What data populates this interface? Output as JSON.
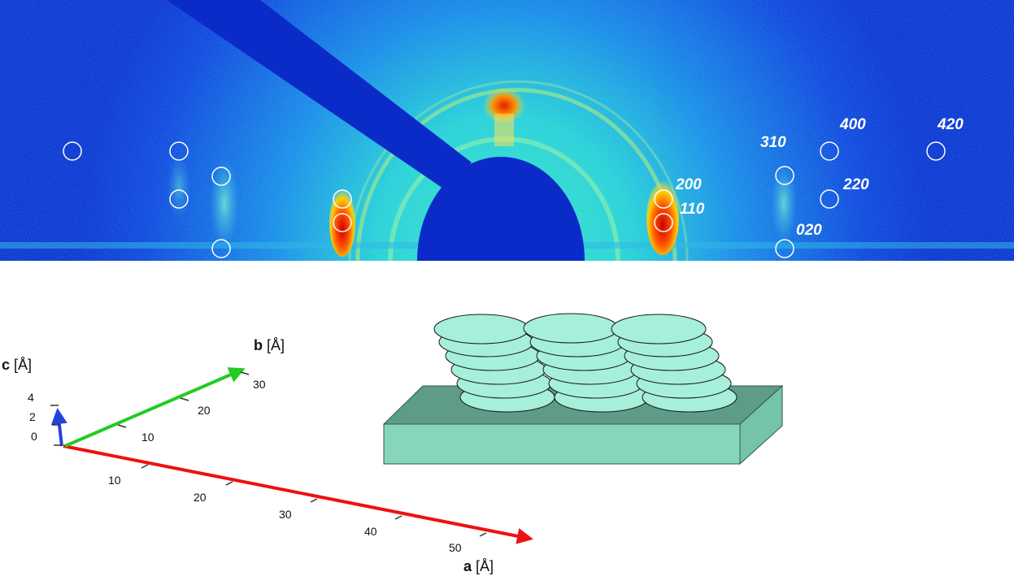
{
  "diffraction_pattern": {
    "reflections": [
      "400",
      "420",
      "310",
      "200",
      "220",
      "110",
      "020"
    ]
  },
  "lattice_axes": {
    "a": {
      "symbol": "a",
      "unit": "[Å]",
      "ticks": [
        "10",
        "20",
        "30",
        "40",
        "50"
      ],
      "color": "#ee1111"
    },
    "b": {
      "symbol": "b",
      "unit": "[Å]",
      "ticks": [
        "10",
        "20",
        "30"
      ],
      "color": "#22cc22"
    },
    "c": {
      "symbol": "c",
      "unit": "[Å]",
      "ticks": [
        "0",
        "2",
        "4"
      ],
      "color": "#2244dd"
    }
  },
  "stack_illustration": {
    "disc_color": "#a6f0db",
    "substrate_top_color": "#5e9c88",
    "substrate_side_color": "#86d6bc"
  }
}
